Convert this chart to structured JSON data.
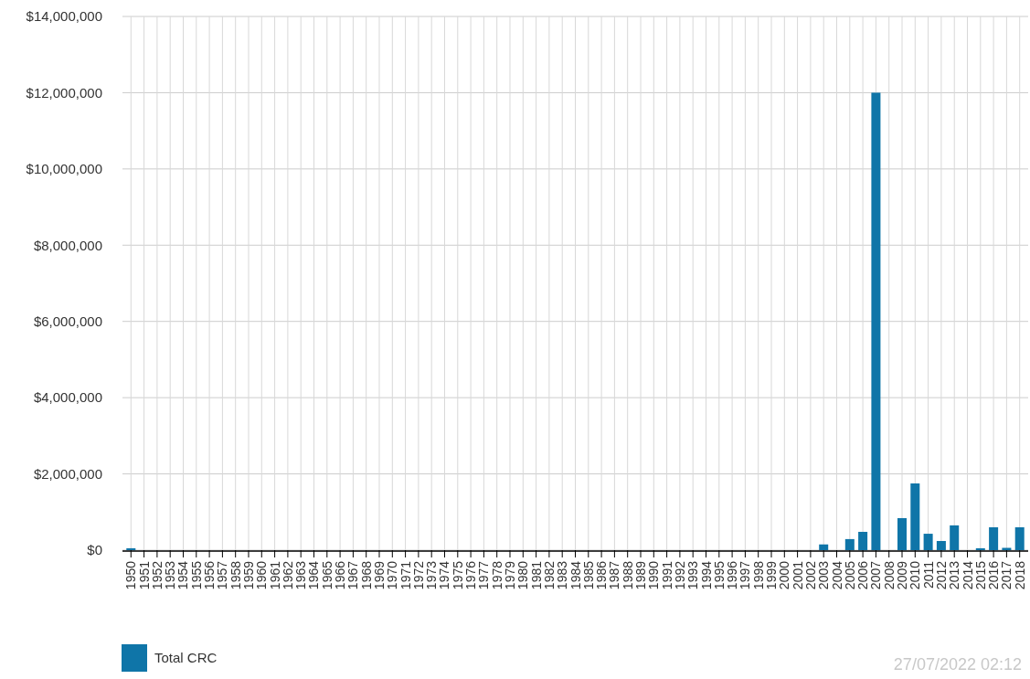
{
  "chart_data": {
    "type": "bar",
    "categories": [
      "1950",
      "1951",
      "1952",
      "1953",
      "1954",
      "1955",
      "1956",
      "1957",
      "1958",
      "1959",
      "1960",
      "1961",
      "1962",
      "1963",
      "1964",
      "1965",
      "1966",
      "1967",
      "1968",
      "1969",
      "1970",
      "1971",
      "1972",
      "1973",
      "1974",
      "1975",
      "1976",
      "1977",
      "1978",
      "1979",
      "1980",
      "1981",
      "1982",
      "1983",
      "1984",
      "1985",
      "1986",
      "1987",
      "1988",
      "1989",
      "1990",
      "1991",
      "1992",
      "1993",
      "1994",
      "1995",
      "1996",
      "1997",
      "1998",
      "1999",
      "2000",
      "2001",
      "2002",
      "2003",
      "2004",
      "2005",
      "2006",
      "2007",
      "2008",
      "2009",
      "2010",
      "2011",
      "2012",
      "2013",
      "2014",
      "2015",
      "2016",
      "2017",
      "2018"
    ],
    "series": [
      {
        "name": "Total CRC",
        "color": "#0f75a8",
        "values": [
          50000,
          0,
          0,
          0,
          0,
          0,
          0,
          0,
          0,
          0,
          0,
          0,
          0,
          0,
          0,
          0,
          0,
          0,
          0,
          0,
          0,
          0,
          0,
          0,
          0,
          0,
          0,
          0,
          0,
          0,
          0,
          0,
          0,
          0,
          0,
          0,
          0,
          0,
          0,
          0,
          0,
          0,
          0,
          0,
          0,
          0,
          0,
          0,
          0,
          0,
          0,
          0,
          0,
          150000,
          0,
          290000,
          480000,
          12000000,
          0,
          840000,
          1750000,
          430000,
          240000,
          650000,
          0,
          50000,
          600000,
          60000,
          600000
        ]
      }
    ],
    "ylim": [
      0,
      14000000
    ],
    "yticks": [
      {
        "value": 0,
        "label": "$0"
      },
      {
        "value": 2000000,
        "label": "$2,000,000"
      },
      {
        "value": 4000000,
        "label": "$4,000,000"
      },
      {
        "value": 6000000,
        "label": "$6,000,000"
      },
      {
        "value": 8000000,
        "label": "$8,000,000"
      },
      {
        "value": 10000000,
        "label": "$10,000,000"
      },
      {
        "value": 12000000,
        "label": "$12,000,000"
      },
      {
        "value": 14000000,
        "label": "$14,000,000"
      }
    ],
    "grid": true,
    "legend": "bottom left",
    "annotations": [
      "27/07/2022 02:12"
    ]
  }
}
